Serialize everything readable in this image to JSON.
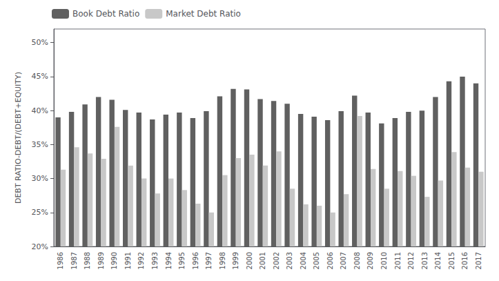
{
  "chart_data": {
    "type": "bar",
    "y_label": "DEBT RATIO-DEBT/(DEBT+EQUITY)",
    "categories": [
      "1986",
      "1987",
      "1988",
      "1989",
      "1990",
      "1991",
      "1992",
      "1993",
      "1994",
      "1995",
      "1996",
      "1997",
      "1998",
      "1999",
      "2000",
      "2001",
      "2002",
      "2003",
      "2004",
      "2005",
      "2006",
      "2007",
      "2008",
      "2009",
      "2010",
      "2011",
      "2012",
      "2013",
      "2014",
      "2015",
      "2016",
      "2017"
    ],
    "series": [
      {
        "name": "Book Debt Ratio",
        "color": "#606060",
        "values": [
          39.0,
          39.8,
          40.9,
          42.0,
          41.6,
          40.1,
          39.7,
          38.7,
          39.4,
          39.7,
          38.9,
          39.9,
          42.1,
          43.2,
          43.1,
          41.7,
          41.4,
          41.0,
          39.5,
          39.1,
          38.6,
          39.9,
          42.2,
          39.7,
          38.1,
          38.9,
          39.8,
          40.0,
          42.0,
          44.3,
          45.0,
          44.0
        ]
      },
      {
        "name": "Market Debt Ratio",
        "color": "#c8c8c8",
        "values": [
          31.3,
          34.6,
          33.7,
          32.9,
          37.6,
          31.9,
          30.0,
          27.8,
          30.0,
          28.3,
          26.3,
          25.0,
          30.5,
          33.0,
          33.5,
          31.9,
          34.0,
          28.5,
          26.2,
          26.0,
          25.0,
          27.7,
          39.2,
          31.4,
          28.5,
          31.1,
          30.4,
          27.3,
          29.7,
          33.9,
          31.6,
          31.0
        ]
      }
    ],
    "ylim": [
      20,
      52
    ],
    "yticks": [
      {
        "value": 20,
        "label": "20%"
      },
      {
        "value": 25,
        "label": "25%"
      },
      {
        "value": 30,
        "label": "30%"
      },
      {
        "value": 35,
        "label": "35%"
      },
      {
        "value": 40,
        "label": "40%"
      },
      {
        "value": 45,
        "label": "45%"
      },
      {
        "value": 50,
        "label": "50%"
      }
    ],
    "grid": false,
    "legend": "upper left"
  }
}
